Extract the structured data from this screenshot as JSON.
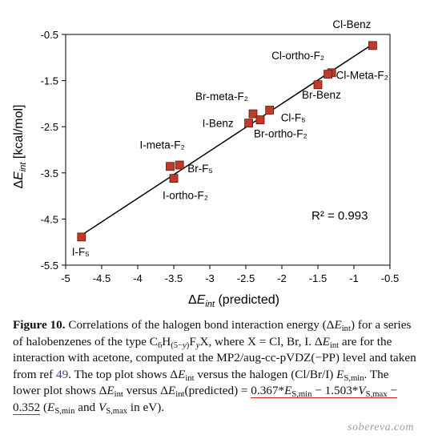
{
  "chart_data": {
    "type": "scatter",
    "xlabel_symbol": "ΔE",
    "xlabel_sub": "int",
    "xlabel_rest": " (predicted)",
    "ylabel_symbol": "ΔE",
    "ylabel_sub": "int",
    "ylabel_rest": " [kcal/mol]",
    "xlim": [
      -5,
      -0.5
    ],
    "ylim": [
      -5.5,
      -0.5
    ],
    "xticks": [
      -5,
      -4.5,
      -4,
      -3.5,
      -3,
      -2.5,
      -2,
      -1.5,
      -1,
      -0.5
    ],
    "yticks": [
      -0.5,
      -1.5,
      -2.5,
      -3.5,
      -4.5,
      -5.5
    ],
    "marker_color": "#c0392b",
    "marker_edge": "#5a1a10",
    "points": [
      {
        "x": -0.74,
        "y": -0.74,
        "label": "Cl-Benz"
      },
      {
        "x": -1.31,
        "y": -1.33,
        "label": "Cl-ortho-F₂"
      },
      {
        "x": -1.36,
        "y": -1.36,
        "label": "Cl-Meta-F₂"
      },
      {
        "x": -1.5,
        "y": -1.59,
        "label": "Br-Benz"
      },
      {
        "x": -2.17,
        "y": -2.14,
        "label": "Cl-F₅"
      },
      {
        "x": -2.4,
        "y": -2.22,
        "label": "Br-meta-F₂"
      },
      {
        "x": -2.3,
        "y": -2.35,
        "label": "Br-ortho-F₂"
      },
      {
        "x": -2.46,
        "y": -2.42,
        "label": "I-Benz"
      },
      {
        "x": -3.42,
        "y": -3.33,
        "label": "Br-F₅"
      },
      {
        "x": -3.55,
        "y": -3.36,
        "label": "I-meta-F₂"
      },
      {
        "x": -3.5,
        "y": -3.62,
        "label": "I-ortho-F₂"
      },
      {
        "x": -4.78,
        "y": -4.89,
        "label": "I-F₅"
      }
    ],
    "fit_line": {
      "x": [
        -4.78,
        -0.74
      ],
      "y": [
        -4.85,
        -0.71
      ]
    },
    "r2_text": "R² = 0.993"
  },
  "caption": {
    "figure_label": "Figure 10.",
    "lines_html": "Correlations of the halogen bond interaction energy (Δ<i>E</i><sub>int</sub>) for a series of halobenzenes of the type C<sub>6</sub>H<sub>(5−<i>y</i>)</sub>F<sub><i>y</i></sub>X, where X = Cl, Br, I. Δ<i>E</i><sub>int</sub> are for the interaction with acetone, computed at the MP2/aug-cc-pVDZ(−PP) level and taken from ref <span class=\"ref\">49</span>. The top plot shows Δ<i>E</i><sub>int</sub> versus the halogen (Cl/Br/I) <i>E</i><sub>S,min</sub>. The lower plot shows Δ<i>E</i><sub>int</sub> versus Δ<i>E</i><sub>int</sub>(predicted) = <span class=\"formula\">0.367*<i>E</i><sub>S,min</sub> − 1.503*<i>V</i><sub>S,max</sub> − 0.352</span> (<i>E</i><sub>S,min</sub> and <i>V</i><sub>S,max</sub> in eV)."
  },
  "watermark": "sobereva.com"
}
